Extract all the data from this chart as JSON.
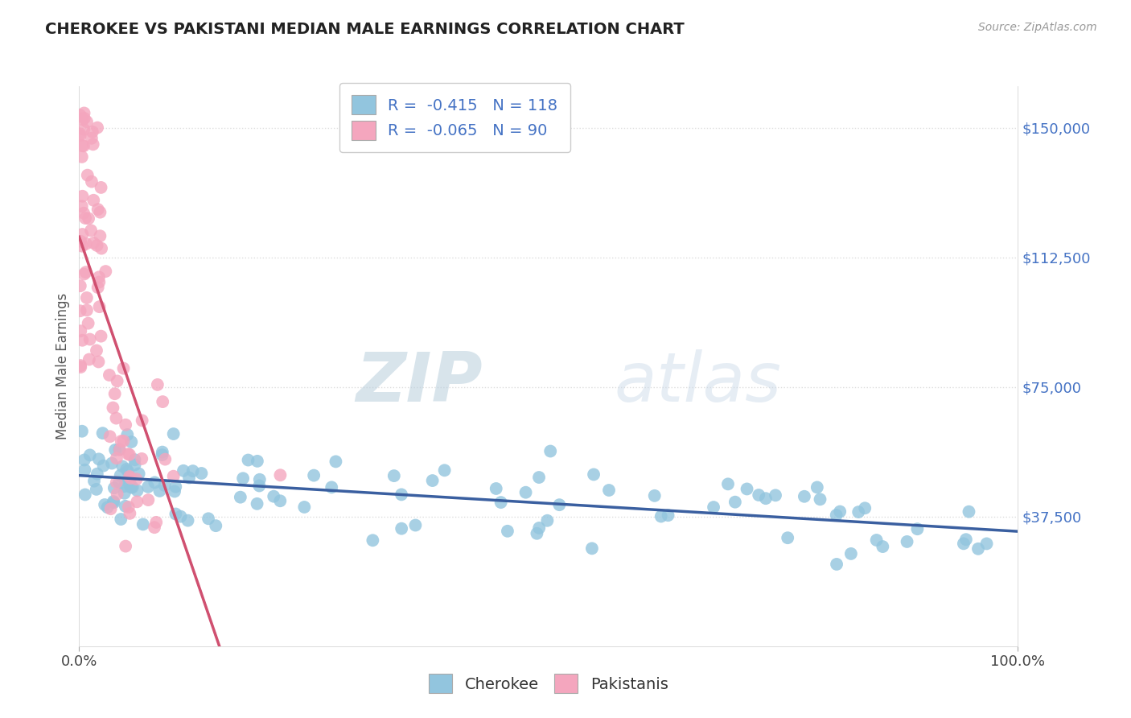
{
  "title": "CHEROKEE VS PAKISTANI MEDIAN MALE EARNINGS CORRELATION CHART",
  "source": "Source: ZipAtlas.com",
  "ylabel": "Median Male Earnings",
  "ymin": 0,
  "ymax": 162000,
  "xmin": 0,
  "xmax": 100,
  "legend": {
    "cherokee_r": "-0.415",
    "cherokee_n": "118",
    "pakistani_r": "-0.065",
    "pakistani_n": "90"
  },
  "cherokee_color": "#92C5DE",
  "pakistani_color": "#F4A6BE",
  "trend_cherokee_color": "#3A5FA0",
  "trend_pakistani_color": "#D05070",
  "trend_dashed_color": "#C8A0B0",
  "background_color": "#FFFFFF",
  "grid_color": "#DDDDDD",
  "title_color": "#222222",
  "axis_label_color": "#4472C4",
  "legend_text_color": "#4472C4",
  "ytick_vals": [
    37500,
    75000,
    112500,
    150000
  ],
  "ytick_labels": [
    "$37,500",
    "$75,000",
    "$112,500",
    "$150,000"
  ]
}
